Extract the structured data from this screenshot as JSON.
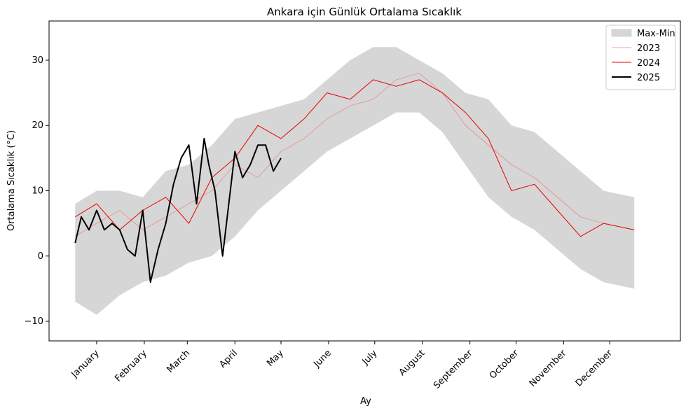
{
  "chart_data": {
    "type": "line",
    "title": "Ankara için Günlük Ortalama Sıcaklık",
    "xlabel": "Ay",
    "ylabel": "Ortalama Sıcaklık (°C)",
    "ylim": [
      -13,
      36
    ],
    "yticks": [
      -10,
      0,
      10,
      20,
      30
    ],
    "x_unit": "day of year",
    "xlim": [
      -16,
      395
    ],
    "months": [
      {
        "label": "January",
        "day": 15
      },
      {
        "label": "February",
        "day": 46
      },
      {
        "label": "March",
        "day": 74
      },
      {
        "label": "April",
        "day": 105
      },
      {
        "label": "May",
        "day": 135
      },
      {
        "label": "June",
        "day": 166
      },
      {
        "label": "July",
        "day": 196
      },
      {
        "label": "August",
        "day": 227
      },
      {
        "label": "September",
        "day": 258
      },
      {
        "label": "October",
        "day": 288
      },
      {
        "label": "November",
        "day": 319
      },
      {
        "label": "December",
        "day": 349
      }
    ],
    "legend": {
      "position": "top-right",
      "entries": [
        "Max-Min",
        "2023",
        "2024",
        "2025"
      ]
    },
    "band": {
      "name": "Max-Min",
      "color": "#d6d6d6",
      "x": [
        1,
        15,
        30,
        45,
        60,
        75,
        90,
        105,
        120,
        135,
        150,
        165,
        180,
        195,
        210,
        225,
        240,
        255,
        270,
        285,
        300,
        315,
        330,
        345,
        365
      ],
      "upper": [
        8,
        10,
        10,
        9,
        13,
        14,
        17,
        21,
        22,
        23,
        24,
        27,
        30,
        32,
        32,
        30,
        28,
        25,
        24,
        20,
        19,
        16,
        13,
        10,
        9
      ],
      "lower": [
        -7,
        -9,
        -6,
        -4,
        -3,
        -1,
        0,
        3,
        7,
        10,
        13,
        16,
        18,
        20,
        22,
        22,
        19,
        14,
        9,
        6,
        4,
        1,
        -2,
        -4,
        -5
      ]
    },
    "series": [
      {
        "name": "2023",
        "color": "#f08080",
        "width": 0.7,
        "x": [
          1,
          15,
          30,
          45,
          60,
          75,
          90,
          105,
          120,
          135,
          150,
          165,
          180,
          195,
          210,
          225,
          240,
          255,
          270,
          285,
          300,
          315,
          330,
          345,
          365
        ],
        "y": [
          3,
          5,
          7,
          4,
          6,
          8,
          10,
          14,
          12,
          16,
          18,
          21,
          23,
          24,
          27,
          28,
          25,
          20,
          17,
          14,
          12,
          9,
          6,
          5,
          4
        ]
      },
      {
        "name": "2024",
        "color": "#e50000",
        "width": 1,
        "x": [
          1,
          15,
          30,
          45,
          60,
          75,
          90,
          105,
          120,
          135,
          150,
          165,
          180,
          195,
          210,
          225,
          240,
          255,
          270,
          285,
          300,
          315,
          330,
          345,
          365
        ],
        "y": [
          6,
          8,
          4,
          7,
          9,
          5,
          12,
          15,
          20,
          18,
          21,
          25,
          24,
          27,
          26,
          27,
          25,
          22,
          18,
          10,
          11,
          7,
          3,
          5,
          4
        ]
      },
      {
        "name": "2025",
        "color": "#000000",
        "width": 2,
        "x": [
          1,
          5,
          10,
          15,
          20,
          25,
          30,
          35,
          40,
          45,
          50,
          55,
          60,
          65,
          70,
          75,
          80,
          85,
          88,
          92,
          97,
          101,
          105,
          110,
          115,
          120,
          125,
          130,
          135
        ],
        "y": [
          2,
          6,
          4,
          7,
          4,
          5,
          4,
          1,
          0,
          7,
          -4,
          1,
          5,
          11,
          15,
          17,
          8,
          18,
          14,
          10,
          0,
          8,
          16,
          12,
          14,
          17,
          17,
          13,
          15
        ]
      }
    ]
  }
}
